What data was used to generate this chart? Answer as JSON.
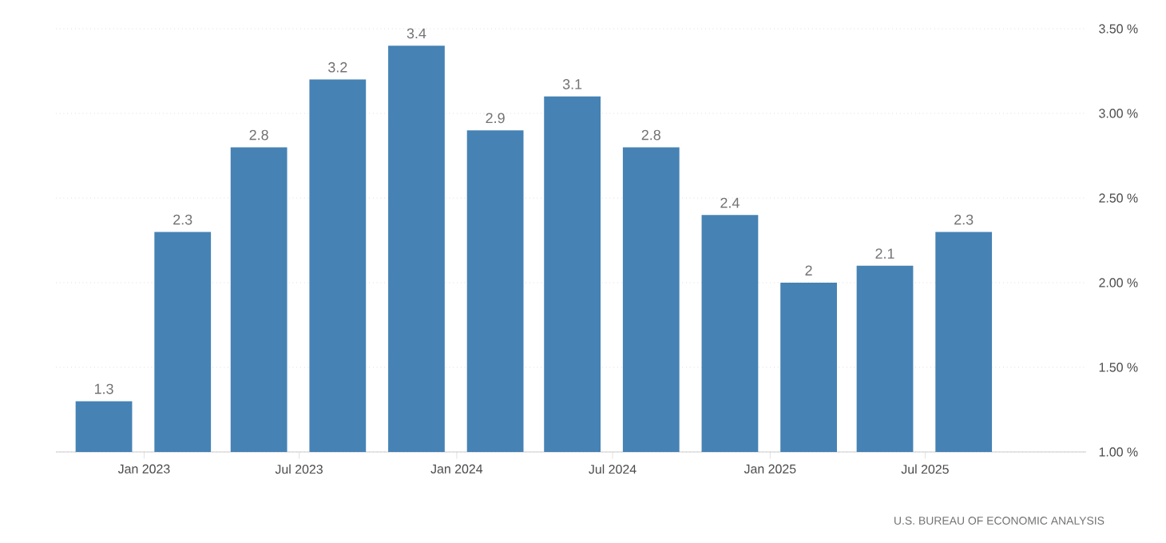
{
  "chart_data": {
    "type": "bar",
    "x": [
      "2022-11-15",
      "2023-02-15",
      "2023-05-15",
      "2023-08-15",
      "2023-11-15",
      "2024-02-15",
      "2024-05-15",
      "2024-08-15",
      "2024-11-15",
      "2025-02-15",
      "2025-05-15",
      "2025-08-15"
    ],
    "values": [
      1.3,
      2.3,
      2.8,
      3.2,
      3.4,
      2.9,
      3.1,
      2.8,
      2.4,
      2,
      2.1,
      2.3
    ],
    "color": "#4682b4",
    "data_labels": true,
    "xlim": [
      "2022-09-20",
      "2026-01-05"
    ],
    "xticks": [
      {
        "value": "2023-01-01",
        "label": "Jan 2023"
      },
      {
        "value": "2023-07-01",
        "label": "Jul 2023"
      },
      {
        "value": "2024-01-01",
        "label": "Jan 2024"
      },
      {
        "value": "2024-07-01",
        "label": "Jul 2024"
      },
      {
        "value": "2025-01-01",
        "label": "Jan 2025"
      },
      {
        "value": "2025-07-01",
        "label": "Jul 2025"
      }
    ],
    "ylim": [
      1,
      3.5
    ],
    "yticks": [
      {
        "value": 1,
        "label": "1.00 %"
      },
      {
        "value": 1.5,
        "label": "1.50 %"
      },
      {
        "value": 2,
        "label": "2.00 %"
      },
      {
        "value": 2.5,
        "label": "2.50 %"
      },
      {
        "value": 3,
        "label": "3.00 %"
      },
      {
        "value": 3.5,
        "label": "3.50 %"
      }
    ],
    "grid": "y",
    "annotations": [
      "U.S. BUREAU OF ECONOMIC ANALYSIS"
    ]
  }
}
